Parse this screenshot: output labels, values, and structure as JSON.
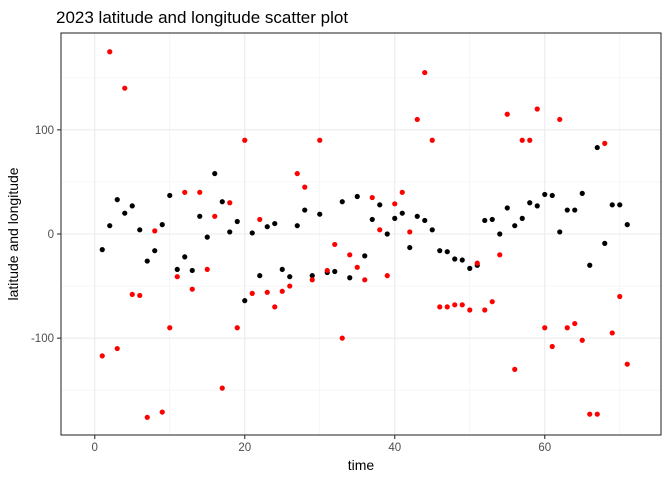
{
  "chart_data": {
    "type": "scatter",
    "title": "2023 latitude and longitude scatter plot",
    "xlabel": "time",
    "ylabel": "latitude and longitude",
    "xlim": [
      -4.5,
      75.5
    ],
    "ylim": [
      -193,
      193
    ],
    "xticks": [
      0,
      20,
      40,
      60
    ],
    "yticks": [
      -100,
      0,
      100
    ],
    "xticklabels": [
      "0",
      "20",
      "40",
      "60"
    ],
    "yticklabels": [
      "-100",
      "0",
      "100"
    ],
    "grid": true,
    "legend": "none",
    "series": [
      {
        "color": "#000000",
        "x": [
          1,
          2,
          3,
          4,
          5,
          6,
          7,
          8,
          9,
          10,
          11,
          12,
          13,
          14,
          15,
          16,
          17,
          18,
          19,
          20,
          21,
          22,
          23,
          24,
          25,
          26,
          27,
          28,
          29,
          30,
          31,
          32,
          33,
          34,
          35,
          36,
          37,
          38,
          39,
          40,
          41,
          42,
          43,
          44,
          45,
          46,
          47,
          48,
          49,
          50,
          51,
          52,
          53,
          54,
          55,
          56,
          57,
          58,
          59,
          60,
          61,
          62,
          63,
          64,
          65,
          66,
          67,
          68,
          69,
          70,
          71
        ],
        "y": [
          -15,
          8,
          33,
          20,
          27,
          4,
          -26,
          -16,
          9,
          37,
          -34,
          -22,
          -35,
          17,
          -3,
          58,
          31,
          2,
          12,
          -64,
          1,
          -40,
          7,
          10,
          -34,
          -41,
          8,
          23,
          -40,
          19,
          -37,
          -36,
          31,
          -42,
          36,
          -21,
          14,
          28,
          0,
          15,
          20,
          -13,
          17,
          13,
          4,
          -16,
          -17,
          -24,
          -25,
          -33,
          -30,
          13,
          14,
          0,
          25,
          8,
          15,
          30,
          27,
          38,
          37,
          2,
          23,
          23,
          39,
          -30,
          83,
          -9,
          28,
          28,
          9
        ]
      },
      {
        "color": "#ff0000",
        "x": [
          1,
          2,
          3,
          4,
          5,
          6,
          7,
          8,
          9,
          10,
          11,
          12,
          13,
          14,
          15,
          16,
          17,
          18,
          19,
          20,
          21,
          22,
          23,
          24,
          25,
          26,
          27,
          28,
          29,
          30,
          31,
          32,
          33,
          34,
          35,
          36,
          37,
          38,
          39,
          40,
          41,
          42,
          43,
          44,
          45,
          46,
          47,
          48,
          49,
          50,
          51,
          52,
          53,
          54,
          55,
          56,
          57,
          58,
          59,
          60,
          61,
          62,
          63,
          64,
          65,
          66,
          67,
          68,
          69,
          70,
          71
        ],
        "y": [
          -117,
          175,
          -110,
          140,
          -58,
          -59,
          -176,
          3,
          -171,
          -90,
          -41,
          40,
          -53,
          40,
          -34,
          17,
          -148,
          30,
          -90,
          90,
          -57,
          14,
          -56,
          -70,
          -55,
          -50,
          58,
          45,
          -44,
          90,
          -35,
          -10,
          -100,
          -20,
          -32,
          -44,
          35,
          4,
          -40,
          29,
          40,
          2,
          110,
          155,
          90,
          -70,
          -70,
          -68,
          -68,
          -73,
          -28,
          -73,
          -65,
          -20,
          115,
          -130,
          90,
          90,
          120,
          -90,
          -108,
          110,
          -90,
          -86,
          -102,
          -173,
          -173,
          87,
          -95,
          -60,
          -125
        ]
      }
    ]
  }
}
